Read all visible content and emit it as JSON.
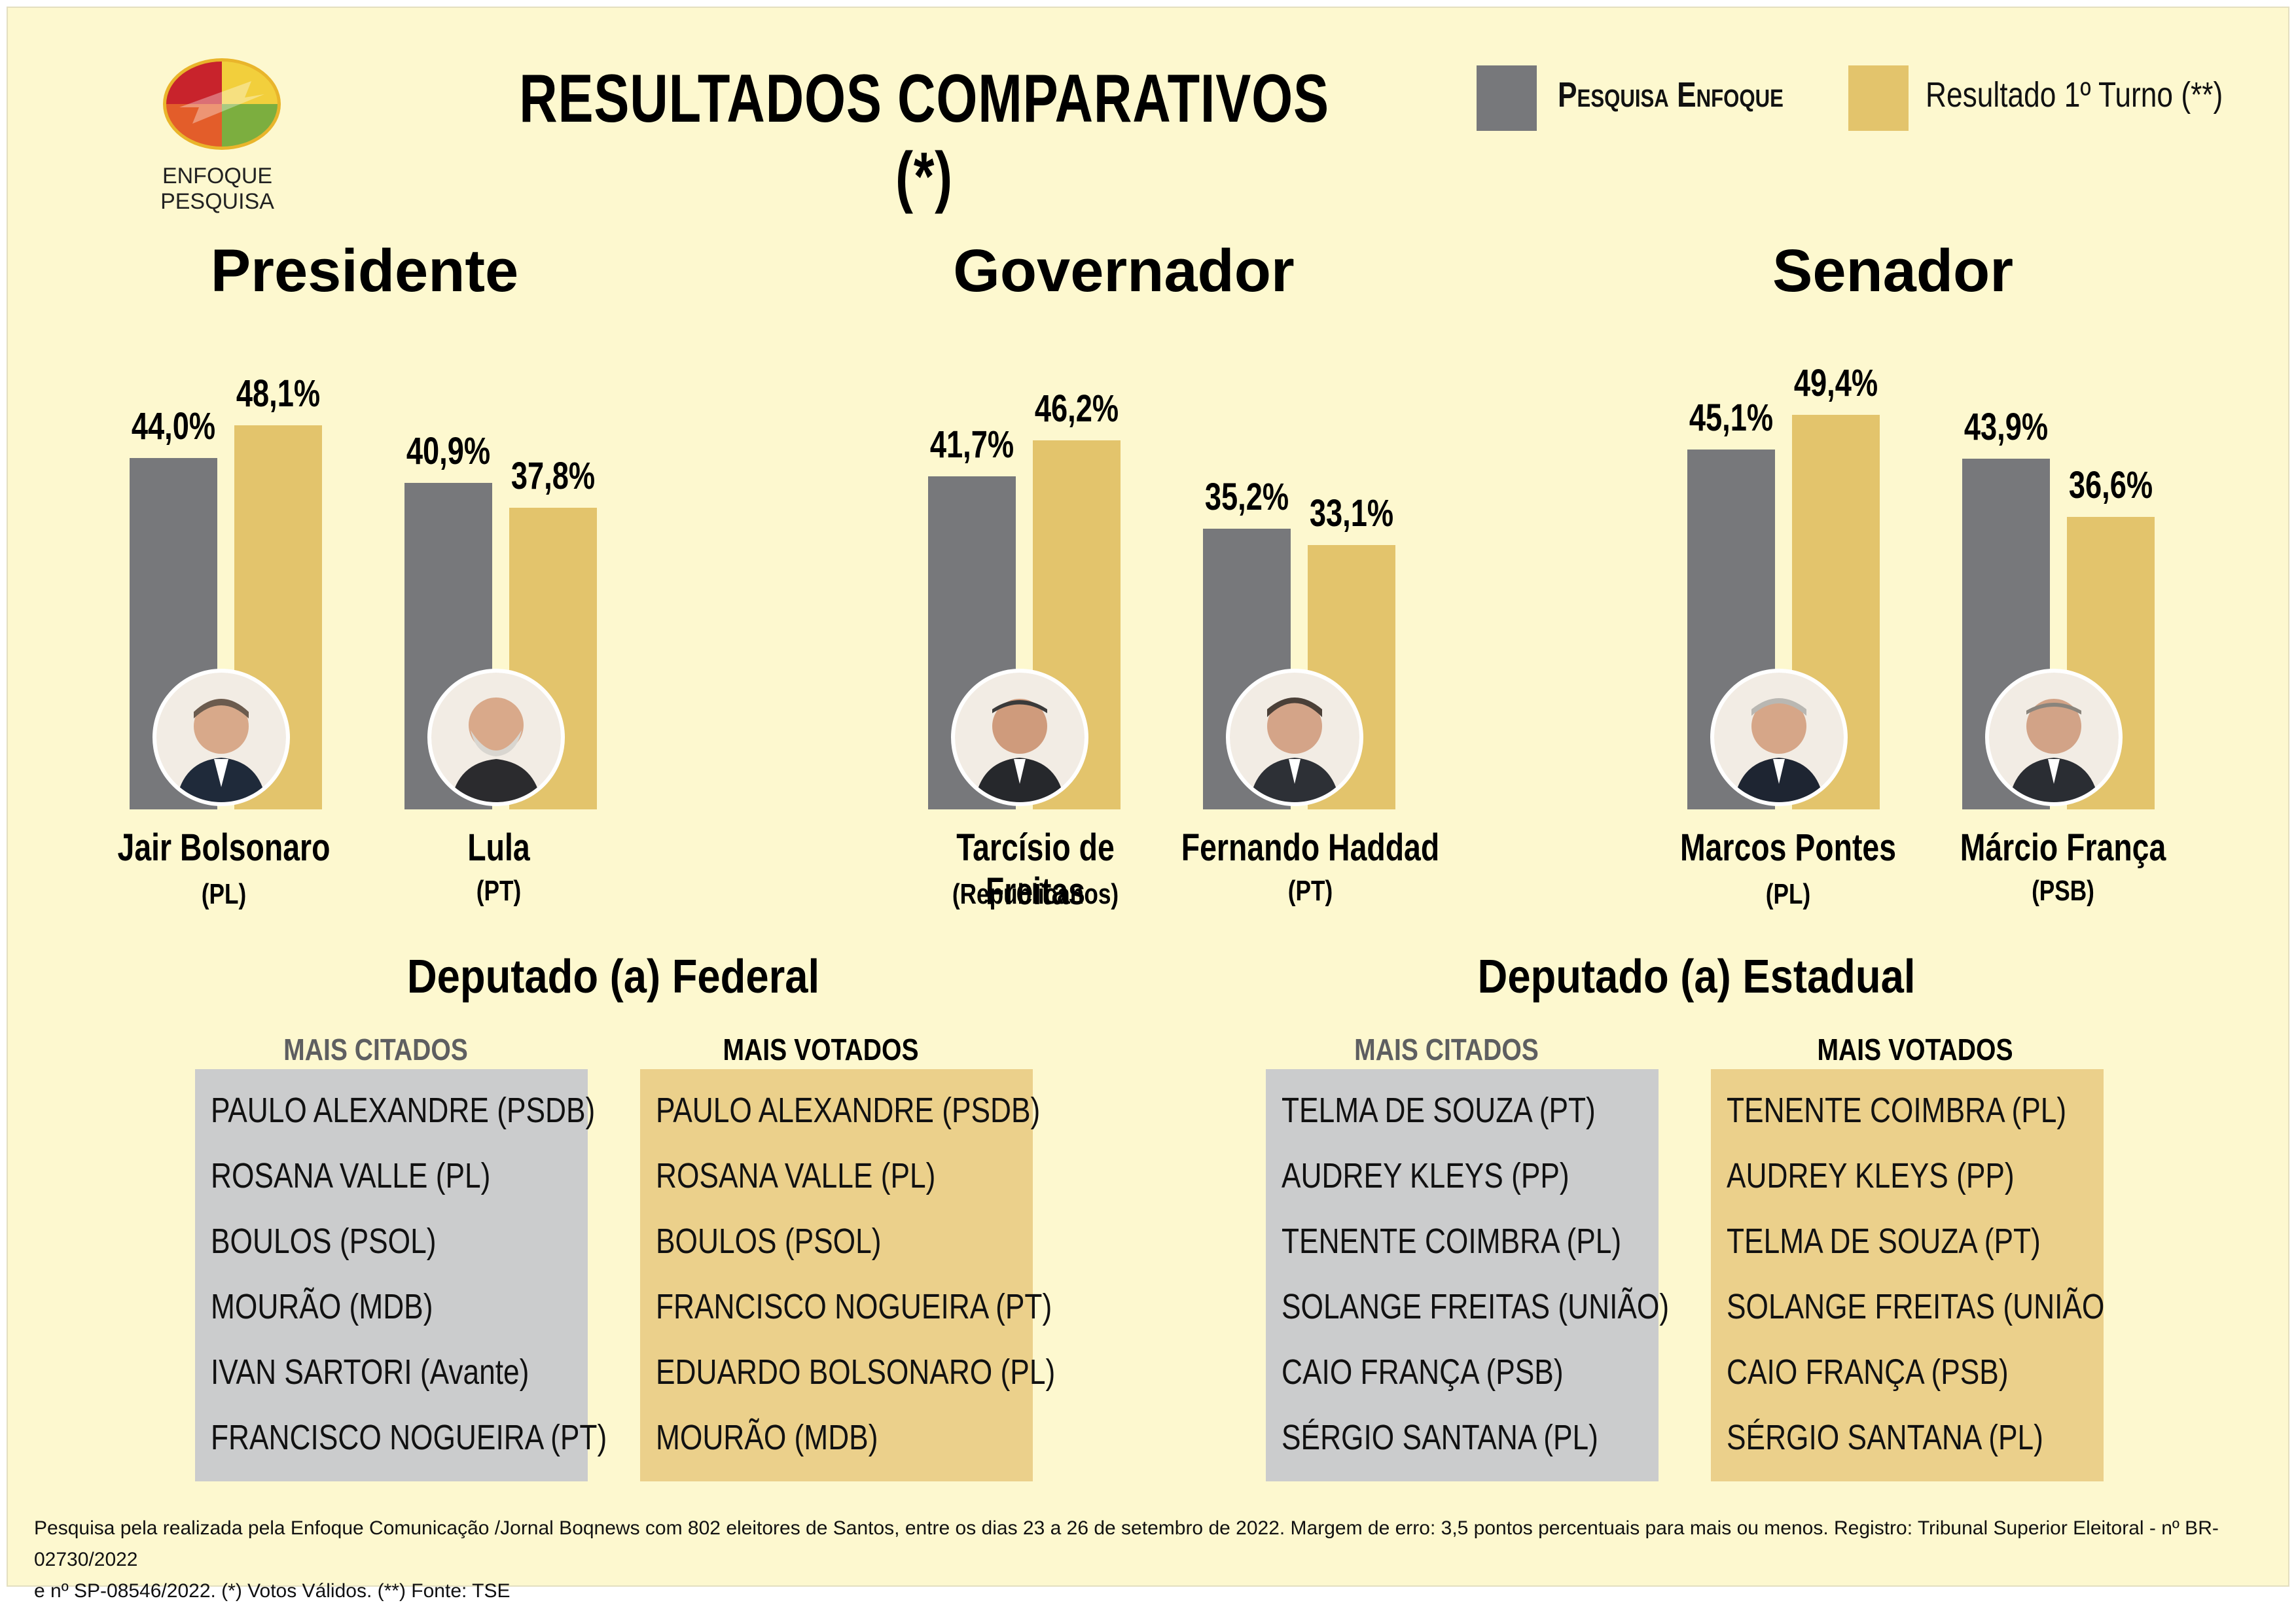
{
  "colors": {
    "background": "#fdf8cf",
    "pesquisa": "#77787b",
    "resultado": "#e3c46c",
    "list_gray": "#cbcccd",
    "list_gold": "#ebd08b"
  },
  "logo": {
    "icon": "enfoque-logo-icon",
    "label": "ENFOQUE PESQUISA"
  },
  "title": "RESULTADOS COMPARATIVOS (*)",
  "legend": {
    "pesquisa": "Pesquisa Enfoque",
    "resultado": "Resultado 1º Turno (**)"
  },
  "chart_data": [
    {
      "type": "bar",
      "title": "Presidente",
      "categories": [
        "Jair Bolsonaro",
        "Lula"
      ],
      "parties": [
        "(PL)",
        "(PT)"
      ],
      "series": [
        {
          "name": "Pesquisa Enfoque",
          "values": [
            44.0,
            40.9
          ],
          "labels": [
            "44,0%",
            "40,9%"
          ]
        },
        {
          "name": "Resultado 1º Turno (**)",
          "values": [
            48.1,
            37.8
          ],
          "labels": [
            "48,1%",
            "37,8%"
          ]
        }
      ],
      "ylim": [
        0,
        60
      ]
    },
    {
      "type": "bar",
      "title": "Governador",
      "categories": [
        "Tarcísio de Freitas",
        "Fernando Haddad"
      ],
      "parties": [
        "(Republicanos)",
        "(PT)"
      ],
      "series": [
        {
          "name": "Pesquisa Enfoque",
          "values": [
            41.7,
            35.2
          ],
          "labels": [
            "41,7%",
            "35,2%"
          ]
        },
        {
          "name": "Resultado 1º Turno (**)",
          "values": [
            46.2,
            33.1
          ],
          "labels": [
            "46,2%",
            "33,1%"
          ]
        }
      ],
      "ylim": [
        0,
        60
      ]
    },
    {
      "type": "bar",
      "title": "Senador",
      "categories": [
        "Marcos Pontes",
        "Márcio França"
      ],
      "parties": [
        "(PL)",
        "(PSB)"
      ],
      "series": [
        {
          "name": "Pesquisa Enfoque",
          "values": [
            45.1,
            43.9
          ],
          "labels": [
            "45,1%",
            "43,9%"
          ]
        },
        {
          "name": "Resultado 1º Turno (**)",
          "values": [
            49.4,
            36.6
          ],
          "labels": [
            "49,4%",
            "36,6%"
          ]
        }
      ],
      "ylim": [
        0,
        60
      ]
    }
  ],
  "deputados": {
    "federal": {
      "title": "Deputado (a) Federal",
      "citados_label": "MAIS CITADOS",
      "votados_label": "MAIS VOTADOS",
      "citados": [
        "PAULO ALEXANDRE (PSDB)",
        "ROSANA VALLE (PL)",
        "BOULOS (PSOL)",
        "MOURÃO (MDB)",
        "IVAN SARTORI (Avante)",
        "FRANCISCO NOGUEIRA (PT)"
      ],
      "votados": [
        "PAULO ALEXANDRE (PSDB)",
        "ROSANA VALLE (PL)",
        "BOULOS (PSOL)",
        "FRANCISCO NOGUEIRA (PT)",
        "EDUARDO BOLSONARO (PL)",
        "MOURÃO (MDB)"
      ]
    },
    "estadual": {
      "title": "Deputado (a) Estadual",
      "citados_label": "MAIS CITADOS",
      "votados_label": "MAIS VOTADOS",
      "citados": [
        "TELMA DE SOUZA (PT)",
        "AUDREY KLEYS (PP)",
        "TENENTE COIMBRA (PL)",
        "SOLANGE FREITAS (UNIÃO)",
        "CAIO FRANÇA (PSB)",
        "SÉRGIO SANTANA (PL)"
      ],
      "votados": [
        "TENENTE COIMBRA (PL)",
        "AUDREY KLEYS (PP)",
        "TELMA DE SOUZA (PT)",
        "SOLANGE FREITAS (UNIÃO",
        "CAIO FRANÇA (PSB)",
        "SÉRGIO SANTANA (PL)"
      ]
    }
  },
  "footnote": {
    "line1": "Pesquisa pela realizada pela Enfoque Comunicação /Jornal Boqnews com 802 eleitores de Santos, entre os dias 23 a 26 de setembro de 2022.  Margem de erro: 3,5 pontos percentuais para mais ou menos. Registro: Tribunal Superior Eleitoral - nº BR-02730/2022",
    "line2": "e nº SP-08546/2022. (*) Votos Válidos. (**) Fonte: TSE"
  }
}
